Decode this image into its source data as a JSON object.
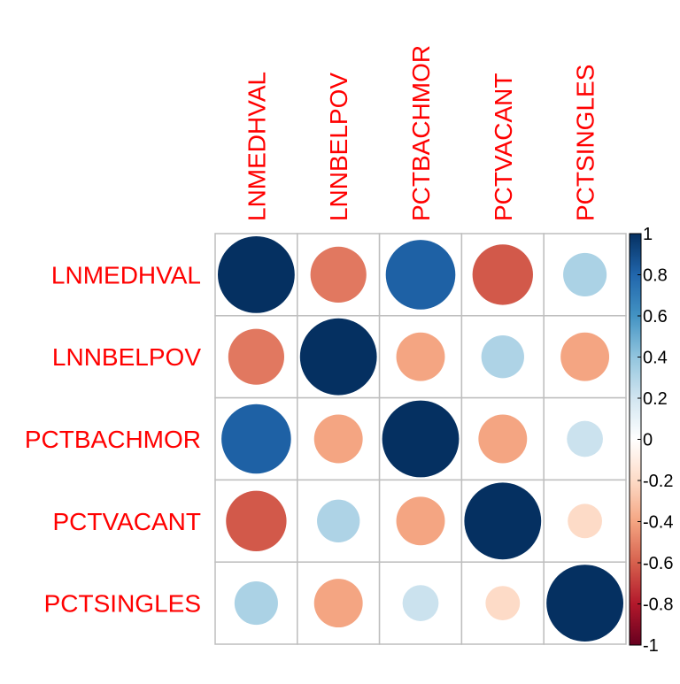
{
  "chart_data": {
    "type": "heatmap",
    "style": "corrplot-circle",
    "variables": [
      "LNMEDHVAL",
      "LNNBELPOV",
      "PCTBACHMOR",
      "PCTVACANT",
      "PCTSINGLES"
    ],
    "matrix": [
      [
        1.0,
        -0.53,
        0.82,
        -0.62,
        0.32
      ],
      [
        -0.53,
        1.0,
        -0.4,
        0.31,
        -0.4
      ],
      [
        0.82,
        -0.4,
        1.0,
        -0.4,
        0.22
      ],
      [
        -0.62,
        0.31,
        -0.4,
        1.0,
        -0.2
      ],
      [
        0.32,
        -0.4,
        0.22,
        -0.2,
        1.0
      ]
    ],
    "color_scale": {
      "range": [
        -1,
        1
      ],
      "ticks": [
        "1",
        "0.8",
        "0.6",
        "0.4",
        "0.2",
        "0",
        "-0.2",
        "-0.4",
        "-0.6",
        "-0.8",
        "-1"
      ],
      "tick_values": [
        1,
        0.8,
        0.6,
        0.4,
        0.2,
        0,
        -0.2,
        -0.4,
        -0.6,
        -0.8,
        -1
      ],
      "stops": [
        "#67001F",
        "#B2182B",
        "#D6604D",
        "#F4A582",
        "#FDDBC7",
        "#FFFFFF",
        "#D1E5F0",
        "#92C5DE",
        "#4393C3",
        "#2166AC",
        "#053061"
      ]
    },
    "label_color": "#FF0000",
    "grid_color": "#BEBEBE",
    "grid": true,
    "legend": "right"
  }
}
